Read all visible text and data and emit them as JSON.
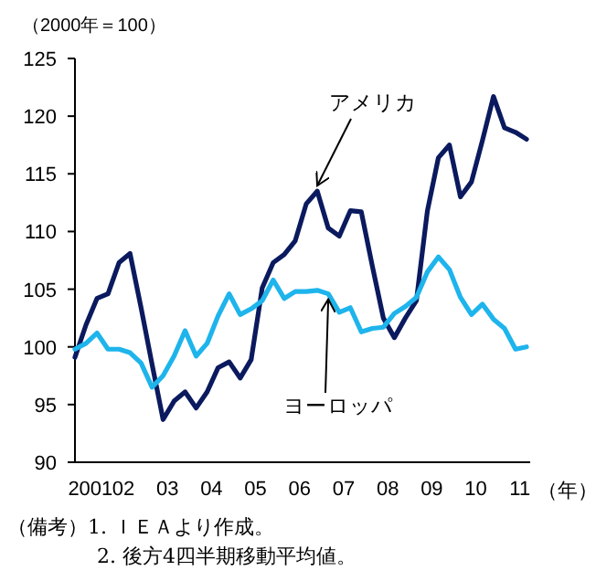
{
  "chart_data": {
    "type": "line",
    "ylabel": "（2000年＝100）",
    "xlabel": "（年）",
    "categories": [
      null,
      "2001",
      null,
      null,
      "02",
      null,
      null,
      null,
      "03",
      null,
      null,
      null,
      "04",
      null,
      null,
      null,
      "05",
      null,
      null,
      null,
      "06",
      null,
      null,
      null,
      "07",
      null,
      null,
      null,
      "08",
      null,
      null,
      null,
      "09",
      null,
      null,
      null,
      "10",
      null,
      null,
      null,
      "11",
      null
    ],
    "series": [
      {
        "name": "アメリカ",
        "color": "#0b1a5e",
        "values": [
          99.1,
          101.9,
          104.2,
          104.6,
          107.3,
          108.1,
          103.4,
          98.5,
          93.7,
          95.3,
          96.1,
          94.7,
          96.1,
          98.2,
          98.7,
          97.3,
          98.9,
          105.1,
          107.3,
          108.0,
          109.2,
          112.4,
          113.5,
          110.3,
          109.6,
          111.8,
          111.7,
          107,
          102.5,
          100.8,
          102.5,
          104,
          111.8,
          116.4,
          117.5,
          113,
          114.3,
          117.9,
          121.7,
          119,
          118.6,
          118
        ]
      },
      {
        "name": "ヨーロッパ",
        "color": "#1eb4ec",
        "values": [
          99.8,
          100.3,
          101.2,
          99.8,
          99.8,
          99.5,
          98.6,
          96.5,
          97.5,
          99.2,
          101.4,
          99.2,
          100.3,
          102.7,
          104.6,
          102.8,
          103.3,
          104.0,
          105.8,
          104.2,
          104.8,
          104.8,
          104.9,
          104.6,
          103.0,
          103.4,
          101.3,
          101.6,
          101.7,
          102.9,
          103.5,
          104.3,
          106.5,
          107.8,
          106.7,
          104.3,
          102.8,
          103.7,
          102.4,
          101.6,
          99.8,
          100.0
        ]
      }
    ],
    "ylim": [
      90,
      125
    ],
    "yticks": [
      90,
      95,
      100,
      105,
      110,
      115,
      120,
      125
    ],
    "grid": false,
    "legend": false,
    "marker": "none",
    "line_style": "solid",
    "annotations": [
      "（備考）1. ＩＥＡより作成。",
      "2. 後方4四半期移動平均値。"
    ]
  }
}
